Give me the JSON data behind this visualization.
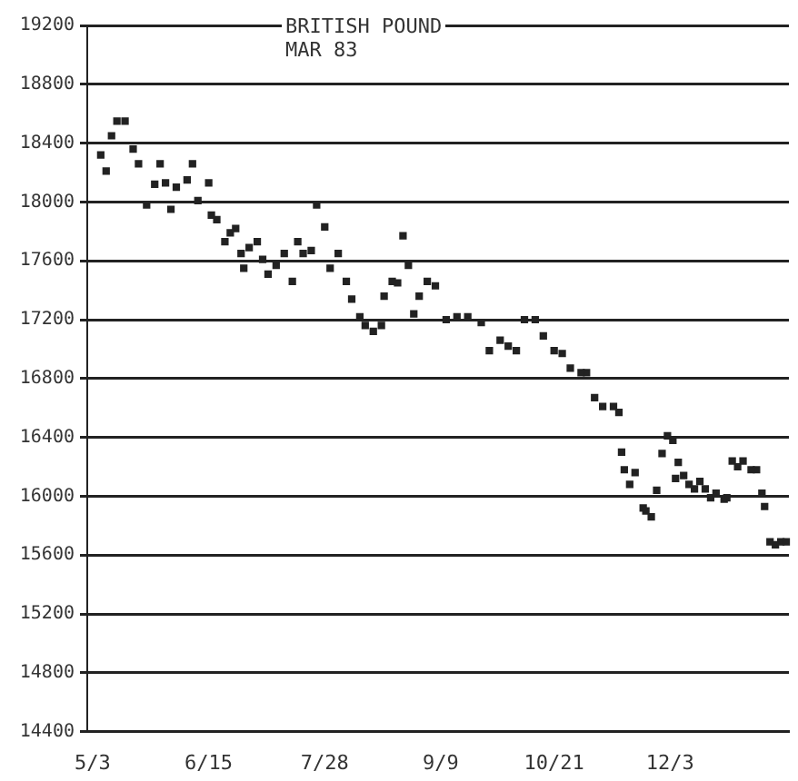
{
  "chart_data": {
    "type": "scatter",
    "title": "BRITISH POUND",
    "subtitle": "MAR 83",
    "categories": [
      null,
      null,
      "5/3",
      null,
      null,
      null,
      null,
      null,
      null,
      null,
      null,
      null,
      null,
      null,
      null,
      null,
      null,
      null,
      null,
      null,
      null,
      null,
      null,
      null,
      null,
      null,
      null,
      null,
      null,
      null,
      null,
      null,
      null,
      null,
      null,
      null,
      null,
      null,
      null,
      null,
      null,
      null,
      null,
      null,
      null,
      "6/15",
      null,
      null,
      null,
      null,
      null,
      null,
      null,
      null,
      null,
      null,
      null,
      null,
      null,
      null,
      null,
      null,
      null,
      null,
      null,
      null,
      null,
      null,
      null,
      null,
      null,
      null,
      null,
      null,
      null,
      null,
      null,
      null,
      null,
      null,
      null,
      null,
      null,
      null,
      null,
      null,
      null,
      null,
      "7/28",
      null,
      null,
      null,
      null,
      null,
      null,
      null,
      null,
      null,
      null,
      null,
      null,
      null,
      null,
      null,
      null,
      null,
      null,
      null,
      null,
      null,
      null,
      null,
      null,
      null,
      null,
      null,
      null,
      null,
      null,
      null,
      null,
      null,
      null,
      null,
      null,
      null,
      null,
      null,
      null,
      null,
      null,
      "9/9",
      null,
      null,
      null,
      null,
      null,
      null,
      null,
      null,
      null,
      null,
      null,
      null,
      null,
      null,
      null,
      null,
      null,
      null,
      null,
      null,
      null,
      null,
      null,
      null,
      null,
      null,
      null,
      null,
      null,
      null,
      null,
      null,
      null,
      null,
      null,
      null,
      null,
      null,
      null,
      null,
      null,
      "10/21",
      null,
      null,
      null,
      null,
      null,
      null,
      null,
      null,
      null,
      null,
      null,
      null,
      null,
      null,
      null,
      null,
      null,
      null,
      null,
      null,
      null,
      null,
      null,
      null,
      null,
      null,
      null,
      null,
      null,
      null,
      null,
      null,
      null,
      null,
      null,
      null,
      null,
      null,
      null,
      null,
      null,
      null,
      "12/3",
      null,
      null,
      null,
      null,
      null,
      null,
      null,
      null,
      null,
      null,
      null,
      null,
      null,
      null,
      null,
      null,
      null,
      null,
      null,
      null,
      null,
      null,
      null,
      null,
      null,
      null,
      null,
      null,
      null,
      null,
      null,
      null,
      null,
      null,
      null,
      null,
      null,
      null,
      null,
      null,
      null,
      null,
      null,
      null
    ],
    "series": [
      {
        "color": "#222222",
        "values": [
          null,
          null,
          null,
          null,
          null,
          18320,
          null,
          18210,
          null,
          18450,
          null,
          18550,
          null,
          null,
          18550,
          null,
          null,
          18360,
          null,
          18260,
          null,
          null,
          17980,
          null,
          null,
          18120,
          null,
          18260,
          null,
          18130,
          null,
          17950,
          null,
          18100,
          null,
          null,
          null,
          18150,
          null,
          18260,
          null,
          18010,
          null,
          null,
          null,
          18130,
          17910,
          null,
          17880,
          null,
          null,
          17730,
          null,
          17790,
          null,
          17820,
          null,
          17650,
          17550,
          null,
          17690,
          null,
          null,
          17730,
          null,
          17610,
          null,
          17510,
          null,
          null,
          17570,
          null,
          null,
          17650,
          null,
          null,
          17460,
          null,
          17730,
          null,
          17650,
          null,
          null,
          17670,
          null,
          17980,
          null,
          null,
          17830,
          null,
          17550,
          null,
          null,
          17650,
          null,
          null,
          17460,
          null,
          17340,
          null,
          null,
          17220,
          null,
          17160,
          null,
          null,
          17120,
          null,
          null,
          17160,
          17360,
          null,
          null,
          17460,
          null,
          17450,
          null,
          17770,
          null,
          17570,
          null,
          17240,
          null,
          17360,
          null,
          null,
          17460,
          null,
          null,
          17430,
          null,
          null,
          null,
          17200,
          null,
          null,
          null,
          17220,
          null,
          null,
          null,
          17220,
          null,
          null,
          null,
          null,
          17180,
          null,
          null,
          16990,
          null,
          null,
          null,
          17060,
          null,
          null,
          17020,
          null,
          null,
          16990,
          null,
          null,
          17200,
          null,
          null,
          null,
          17200,
          null,
          null,
          17090,
          null,
          null,
          null,
          16990,
          null,
          null,
          16970,
          null,
          null,
          16870,
          null,
          null,
          null,
          16840,
          null,
          16840,
          null,
          null,
          16670,
          null,
          null,
          16610,
          null,
          null,
          null,
          16610,
          null,
          16570,
          16300,
          16180,
          null,
          16080,
          null,
          16160,
          null,
          null,
          15920,
          15900,
          null,
          15860,
          null,
          16040,
          null,
          16290,
          null,
          16410,
          null,
          16380,
          16120,
          16230,
          null,
          16140,
          null,
          16080,
          null,
          16050,
          null,
          16100,
          null,
          16050,
          null,
          15990,
          null,
          16020,
          null,
          null,
          15980,
          15990,
          null,
          16240,
          null,
          16200,
          null,
          16240,
          null,
          null,
          16180,
          null,
          16180,
          null,
          16020,
          15930,
          null,
          15690,
          null,
          15670,
          null,
          15690,
          null,
          15690,
          null
        ]
      }
    ],
    "ylim": [
      14400,
      19200
    ],
    "yticks": [
      14400,
      14800,
      15200,
      15600,
      16000,
      16400,
      16800,
      17200,
      17600,
      18000,
      18400,
      18800,
      19200
    ],
    "grid": "y",
    "legend": false,
    "marker": "square"
  }
}
